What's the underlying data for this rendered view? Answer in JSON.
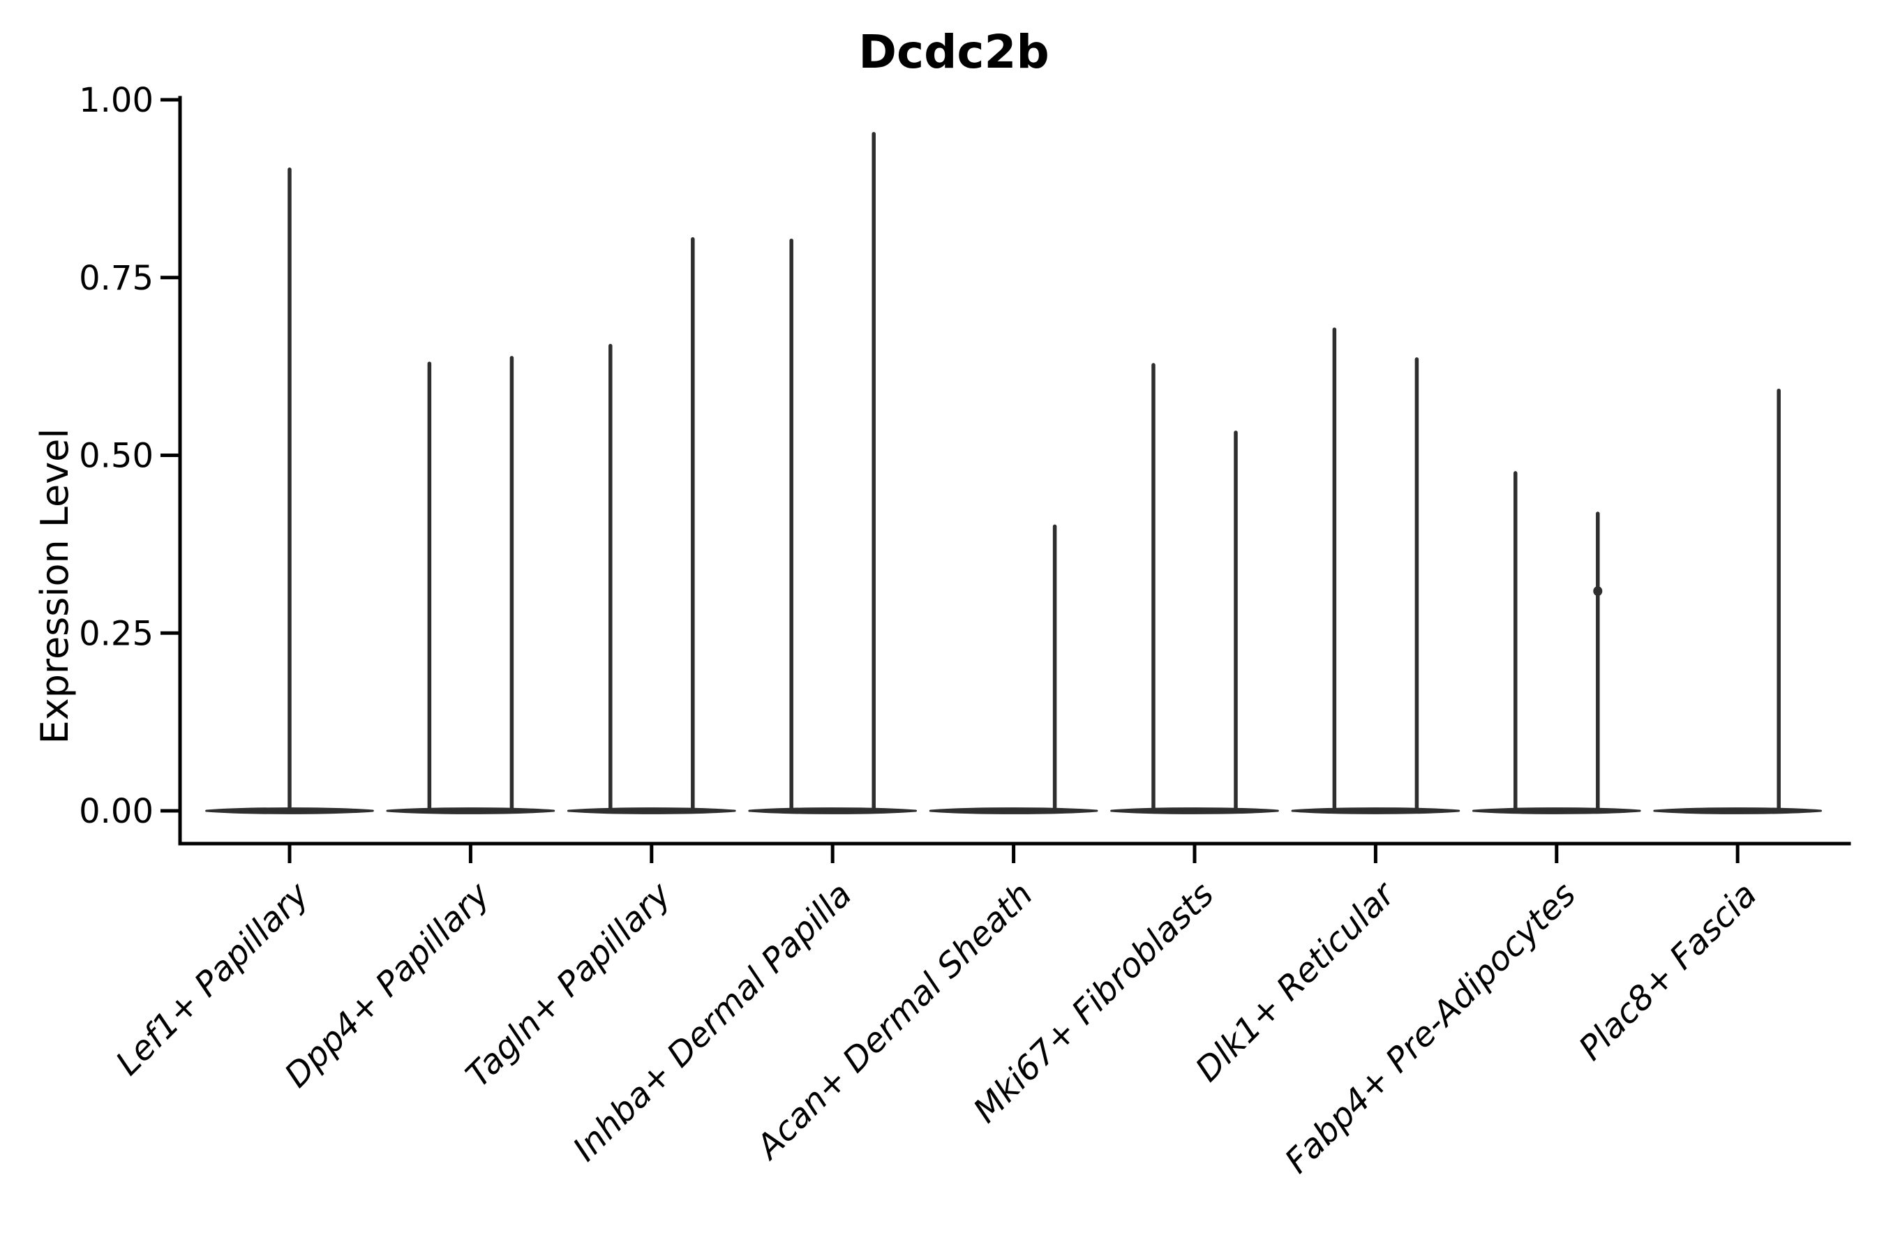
{
  "chart_data": {
    "type": "violin",
    "title": "Dcdc2b",
    "ylabel": "Expression Level",
    "xlabel": "",
    "ylim": [
      0,
      1
    ],
    "grid": false,
    "legend_position": "none",
    "yticks": [
      {
        "value": 0.0,
        "label": "0.00"
      },
      {
        "value": 0.25,
        "label": "0.25"
      },
      {
        "value": 0.5,
        "label": "0.50"
      },
      {
        "value": 0.75,
        "label": "0.75"
      },
      {
        "value": 1.0,
        "label": "1.00"
      }
    ],
    "categories": [
      "Lef1+ Papillary",
      "Dpp4+ Papillary",
      "Tagln+ Papillary",
      "Inhba+ Dermal Papilla",
      "Acan+ Dermal Sheath",
      "Mki67+ Fibroblasts",
      "Dlk1+ Reticular",
      "Fabp4+ Pre-Adipocytes",
      "Plac8+ Fascia"
    ],
    "violins": [
      {
        "category": "Lef1+ Papillary",
        "body_halfwidth_frac": 0.46,
        "baseline_value": 0,
        "spikes": [
          {
            "offset_frac": 0.0,
            "max": 0.905
          }
        ]
      },
      {
        "category": "Dpp4+ Papillary",
        "body_halfwidth_frac": 0.46,
        "baseline_value": 0,
        "spikes": [
          {
            "offset_frac": -0.2275,
            "max": 0.632
          },
          {
            "offset_frac": 0.2275,
            "max": 0.64
          }
        ]
      },
      {
        "category": "Tagln+ Papillary",
        "body_halfwidth_frac": 0.46,
        "baseline_value": 0,
        "spikes": [
          {
            "offset_frac": -0.2275,
            "max": 0.657
          },
          {
            "offset_frac": 0.2275,
            "max": 0.807
          }
        ]
      },
      {
        "category": "Inhba+ Dermal Papilla",
        "body_halfwidth_frac": 0.46,
        "baseline_value": 0,
        "spikes": [
          {
            "offset_frac": -0.2275,
            "max": 0.805
          },
          {
            "offset_frac": 0.2275,
            "max": 0.955
          }
        ]
      },
      {
        "category": "Acan+ Dermal Sheath",
        "body_halfwidth_frac": 0.46,
        "baseline_value": 0,
        "spikes": [
          {
            "offset_frac": 0.2275,
            "max": 0.403
          }
        ]
      },
      {
        "category": "Mki67+ Fibroblasts",
        "body_halfwidth_frac": 0.46,
        "baseline_value": 0,
        "spikes": [
          {
            "offset_frac": -0.2275,
            "max": 0.63
          },
          {
            "offset_frac": 0.2275,
            "max": 0.535
          }
        ]
      },
      {
        "category": "Dlk1+ Reticular",
        "body_halfwidth_frac": 0.46,
        "baseline_value": 0,
        "spikes": [
          {
            "offset_frac": -0.2275,
            "max": 0.68
          },
          {
            "offset_frac": 0.2275,
            "max": 0.638
          }
        ]
      },
      {
        "category": "Fabp4+ Pre-Adipocytes",
        "body_halfwidth_frac": 0.46,
        "baseline_value": 0,
        "spikes": [
          {
            "offset_frac": -0.2275,
            "max": 0.478
          },
          {
            "offset_frac": 0.2275,
            "max": 0.421,
            "bump": 0.309
          }
        ]
      },
      {
        "category": "Plac8+ Fascia",
        "body_halfwidth_frac": 0.46,
        "baseline_value": 0,
        "spikes": [
          {
            "offset_frac": 0.2275,
            "max": 0.594
          }
        ]
      }
    ],
    "style": {
      "line_color": "#2e2e2e",
      "axis_color": "#000000",
      "background": "#ffffff"
    }
  }
}
